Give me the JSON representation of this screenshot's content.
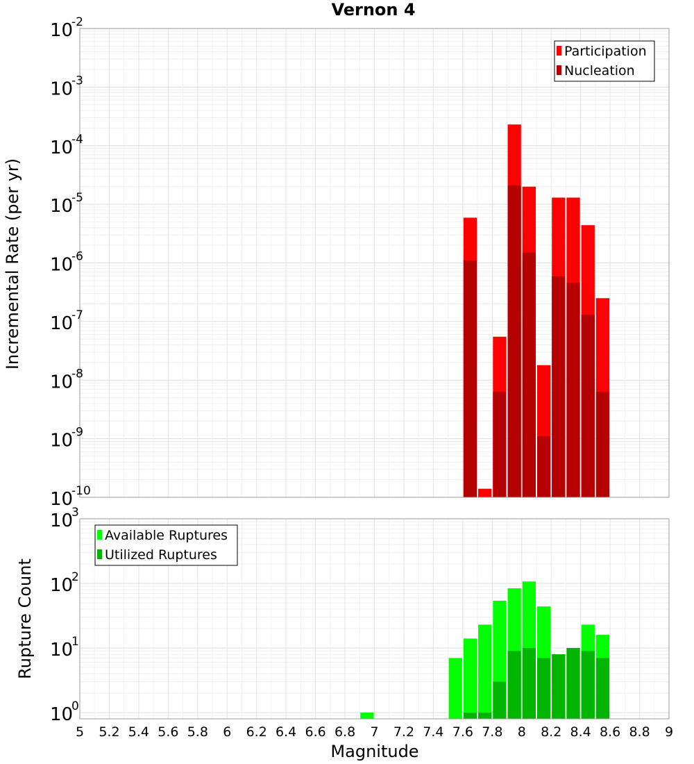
{
  "chart_data": {
    "title": "Vernon 4",
    "xlabel": "Magnitude",
    "x_ticks": [
      "5",
      "5.2",
      "5.4",
      "5.6",
      "5.8",
      "6",
      "6.2",
      "6.4",
      "6.6",
      "6.8",
      "7",
      "7.2",
      "7.4",
      "7.6",
      "7.8",
      "8",
      "8.2",
      "8.4",
      "8.6",
      "8.8",
      "9"
    ],
    "xlim": [
      5,
      9
    ],
    "panels": [
      {
        "type": "bar",
        "ylabel": "Incremental Rate (per yr)",
        "yscale": "log",
        "ylim": [
          1e-10,
          0.01
        ],
        "y_tick_exponents": [
          "-10",
          "-9",
          "-8",
          "-7",
          "-6",
          "-5",
          "-4",
          "-3",
          "-2"
        ],
        "legend": {
          "placement": "top-right",
          "entries": [
            "Participation",
            "Nucleation"
          ]
        },
        "grid": true,
        "x": [
          7.65,
          7.75,
          7.85,
          7.95,
          8.05,
          8.15,
          8.25,
          8.35,
          8.45,
          8.55
        ],
        "series": [
          {
            "name": "Participation",
            "color": "#ff0000",
            "values": [
              5.9e-06,
              1.4e-10,
              5.5e-08,
              0.00023,
              2e-05,
              1.8e-08,
              1.3e-05,
              1.3e-05,
              4.4e-06,
              2.5e-07
            ]
          },
          {
            "name": "Nucleation",
            "color": "#b40000",
            "values": [
              1.1e-06,
              null,
              6.3e-09,
              2.1e-05,
              1.5e-06,
              1.1e-09,
              5.9e-07,
              4.6e-07,
              1.3e-07,
              6.3e-09
            ]
          }
        ]
      },
      {
        "type": "bar",
        "ylabel": "Rupture Count",
        "yscale": "log",
        "ylim": [
          0.8,
          1000
        ],
        "y_tick_exponents": [
          "0",
          "1",
          "2",
          "3"
        ],
        "legend": {
          "placement": "top-left",
          "entries": [
            "Available Ruptures",
            "Utilized Ruptures"
          ]
        },
        "grid": true,
        "x": [
          6.95,
          7.55,
          7.65,
          7.75,
          7.85,
          7.95,
          8.05,
          8.15,
          8.25,
          8.35,
          8.45,
          8.55
        ],
        "series": [
          {
            "name": "Available Ruptures",
            "color": "#00ff00",
            "values": [
              1,
              7,
              14,
              23,
              54,
              84,
              107,
              44,
              8,
              10,
              23,
              16
            ]
          },
          {
            "name": "Utilized Ruptures",
            "color": "#00b400",
            "values": [
              null,
              null,
              1,
              1,
              3,
              9,
              10,
              7,
              8,
              10,
              9,
              7
            ]
          }
        ]
      }
    ]
  }
}
